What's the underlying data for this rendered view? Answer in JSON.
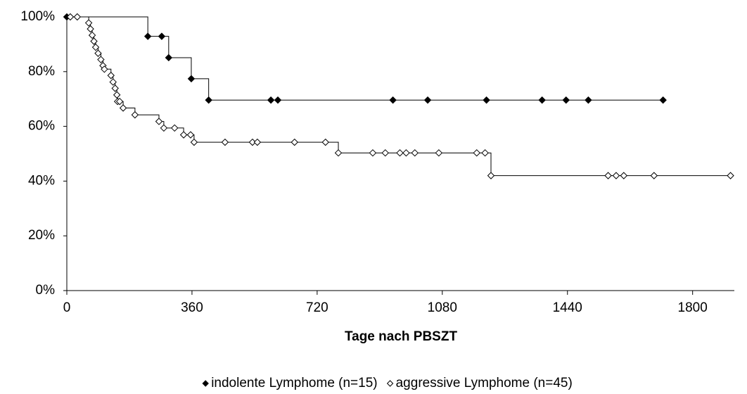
{
  "chart_data": {
    "type": "step",
    "xlabel": "Tage nach PBSZT",
    "xlim": [
      0,
      1920
    ],
    "xticks": [
      0,
      360,
      720,
      1080,
      1440,
      1800
    ],
    "ylim": [
      0,
      100
    ],
    "yticks": [
      {
        "value": 0,
        "label": "0%"
      },
      {
        "value": 20,
        "label": "20%"
      },
      {
        "value": 40,
        "label": "40%"
      },
      {
        "value": 60,
        "label": "60%"
      },
      {
        "value": 80,
        "label": "80%"
      },
      {
        "value": 100,
        "label": "100%"
      }
    ],
    "legend": "bottom",
    "series": [
      {
        "name": "indolente Lymphome (n=15)",
        "color": "#000000",
        "marker_fill": "#000000",
        "x": [
          0,
          233,
          273,
          293,
          358,
          408,
          587,
          607,
          938,
          1038,
          1207,
          1367,
          1436,
          1500,
          1715
        ],
        "values": [
          100,
          92.9,
          92.9,
          85.1,
          77.4,
          69.6,
          69.6,
          69.6,
          69.6,
          69.6,
          69.6,
          69.6,
          69.6,
          69.6,
          69.6
        ]
      },
      {
        "name": "aggressive Lymphome (n=45)",
        "color": "#000000",
        "marker_fill": "#ffffff",
        "x": [
          10,
          30,
          63,
          68,
          73,
          78,
          83,
          90,
          98,
          104,
          108,
          127,
          133,
          139,
          144,
          146,
          152,
          162,
          196,
          265,
          279,
          310,
          336,
          356,
          366,
          455,
          534,
          548,
          655,
          744,
          781,
          880,
          916,
          958,
          976,
          1001,
          1070,
          1179,
          1203,
          1220,
          1557,
          1580,
          1602,
          1689,
          1909
        ],
        "values": [
          100,
          100,
          97.8,
          95.6,
          93.3,
          91.1,
          88.9,
          86.7,
          84.4,
          82.2,
          80.9,
          78.6,
          76.2,
          73.9,
          71.5,
          69.1,
          69.1,
          66.7,
          64.2,
          61.8,
          59.4,
          59.4,
          56.9,
          56.9,
          54.2,
          54.2,
          54.2,
          54.2,
          54.2,
          54.2,
          50.3,
          50.3,
          50.3,
          50.3,
          50.3,
          50.3,
          50.3,
          50.3,
          50.3,
          42.0,
          42.0,
          42.0,
          42.0,
          42.0,
          42.0
        ]
      }
    ]
  }
}
